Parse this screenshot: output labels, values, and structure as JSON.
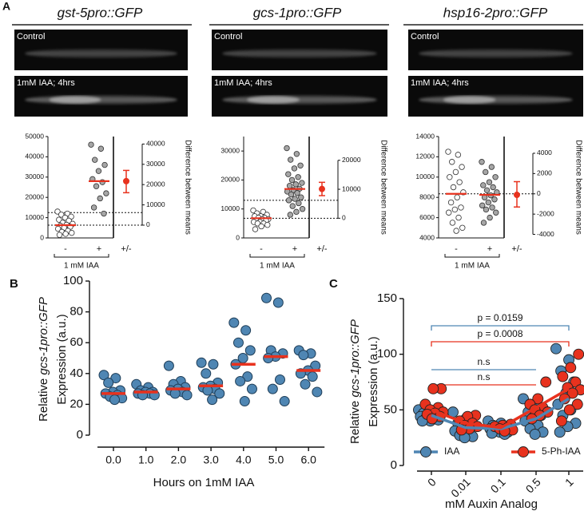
{
  "panel_labels": [
    "A",
    "B",
    "C"
  ],
  "chart_data": [
    {
      "type": "estimation",
      "title": "gst-5pro::GFP",
      "image_labels": [
        "Control",
        "1mM IAA; 4hrs"
      ],
      "categories": [
        "-",
        "+",
        "+/-"
      ],
      "group_label": "1 mM IAA",
      "values": [
        [
          13000,
          12000,
          11500,
          10500,
          10000,
          9000,
          8500,
          7500,
          7000,
          6500,
          6000,
          5500,
          5000,
          4500,
          3500,
          3000,
          2500,
          2000,
          1500
        ],
        [
          46000,
          44000,
          38500,
          36000,
          33000,
          29000,
          27500,
          25500,
          22000,
          19500,
          15000,
          12000
        ]
      ],
      "means": [
        6300,
        28000
      ],
      "difference": 21700,
      "ci": [
        16000,
        27000
      ],
      "marker_colors": [
        "#ffffff",
        "#a6a6a6"
      ],
      "mean_color": "#e8321e",
      "ylim": [
        0,
        50000
      ],
      "yticks": [
        0,
        10000,
        20000,
        30000,
        40000,
        50000
      ],
      "y2lim": [
        -6300,
        43700
      ],
      "y2ticks": [
        0,
        10000,
        20000,
        30000,
        40000
      ],
      "y2label": "Difference between means",
      "reference_lines": [
        6300,
        12500
      ]
    },
    {
      "type": "estimation",
      "title": "gcs-1pro::GFP",
      "image_labels": [
        "Control",
        "1mM IAA; 4hrs"
      ],
      "categories": [
        "-",
        "+",
        "+/-"
      ],
      "group_label": "1 mM IAA",
      "values": [
        [
          9500,
          9000,
          8500,
          8000,
          7500,
          7500,
          7000,
          7000,
          6500,
          6500,
          6000,
          6000,
          5500,
          5500,
          5000,
          5000,
          4500,
          4000,
          3000
        ],
        [
          31000,
          29000,
          27000,
          25000,
          24000,
          22000,
          21000,
          20000,
          19000,
          18500,
          18000,
          17000,
          16500,
          16000,
          15500,
          15000,
          14000,
          13500,
          13000,
          12000,
          11000,
          10000,
          9000,
          8000
        ]
      ],
      "means": [
        6800,
        16900
      ],
      "difference": 10100,
      "ci": [
        7800,
        12400
      ],
      "marker_colors": [
        "#ffffff",
        "#a6a6a6"
      ],
      "mean_color": "#e8321e",
      "ylim": [
        0,
        35000
      ],
      "yticks": [
        0,
        10000,
        20000,
        30000
      ],
      "y2lim": [
        -6800,
        28200
      ],
      "y2ticks": [
        0,
        10000,
        20000
      ],
      "y2label": "Difference between means",
      "reference_lines": [
        6800,
        13000
      ]
    },
    {
      "type": "estimation",
      "title": "hsp16-2pro::GFP",
      "image_labels": [
        "Control",
        "1mM IAA; 4hrs"
      ],
      "categories": [
        "-",
        "+",
        "+/-"
      ],
      "group_label": "1 mM IAA",
      "values": [
        [
          12500,
          12200,
          11500,
          11000,
          10500,
          10000,
          9500,
          9000,
          8500,
          8000,
          7500,
          7000,
          6800,
          6500,
          6000,
          5500,
          5000,
          4700
        ],
        [
          11500,
          11000,
          10500,
          10000,
          9500,
          9200,
          9000,
          8700,
          8500,
          8200,
          8000,
          7800,
          7500,
          7200,
          7000,
          6800,
          6500,
          6000,
          5500
        ]
      ],
      "means": [
        8350,
        8250
      ],
      "difference": -100,
      "ci": [
        -1300,
        1200
      ],
      "marker_colors": [
        "#ffffff",
        "#a6a6a6"
      ],
      "mean_color": "#e8321e",
      "ylim": [
        4000,
        14000
      ],
      "yticks": [
        4000,
        6000,
        8000,
        10000,
        12000,
        14000
      ],
      "y2lim": [
        -4350,
        5650
      ],
      "y2ticks": [
        -4000,
        -2000,
        0,
        2000,
        4000
      ],
      "y2label": "Difference between means",
      "reference_lines": [
        8350
      ]
    },
    {
      "type": "strip",
      "ylabel": [
        "Relative",
        "gcs-1pro::GFP",
        "Expression (a.u.)"
      ],
      "xlabel": "Hours on 1mM IAA",
      "categories": [
        "0.0",
        "1.0",
        "2.0",
        "3.0",
        "4.0",
        "5.0",
        "6.0"
      ],
      "values": [
        [
          39,
          37,
          34,
          29,
          28,
          27,
          26,
          25,
          24,
          23
        ],
        [
          33,
          31,
          29,
          28,
          28,
          27,
          27,
          26,
          26
        ],
        [
          45,
          35,
          33,
          31,
          30,
          29,
          28,
          27,
          26
        ],
        [
          47,
          46,
          40,
          34,
          32,
          31,
          30,
          29,
          27,
          23
        ],
        [
          73,
          68,
          60,
          55,
          50,
          46,
          38,
          35,
          30,
          22
        ],
        [
          89,
          86,
          55,
          53,
          51,
          50,
          36,
          30,
          22
        ],
        [
          55,
          53,
          52,
          45,
          42,
          40,
          38,
          33,
          28
        ]
      ],
      "medians": [
        27,
        28,
        30,
        32,
        46,
        51,
        42
      ],
      "color": "#4f86b3",
      "median_color": "#e8321e",
      "ylim": [
        0,
        100
      ],
      "yticks": [
        0,
        20,
        40,
        60,
        80,
        100
      ]
    },
    {
      "type": "dot_line",
      "ylabel": [
        "Relative",
        "gcs-1pro::GFP",
        "Expression (a.u.)"
      ],
      "xlabel": "mM Auxin Analog",
      "categories": [
        "0",
        "0.01",
        "0.1",
        "0.5",
        "1"
      ],
      "series": [
        {
          "name": "IAA",
          "color": "#4f86b3",
          "values": [
            [
              50,
              48,
              47,
              46,
              45,
              44,
              43,
              42,
              41,
              40,
              40
            ],
            [
              48,
              42,
              38,
              35,
              33,
              31,
              29,
              27,
              26,
              25
            ],
            [
              40,
              38,
              36,
              35,
              34,
              33,
              32,
              31,
              30,
              30,
              29,
              28
            ],
            [
              60,
              52,
              48,
              45,
              43,
              40,
              36,
              33,
              30,
              28
            ],
            [
              105,
              95,
              85,
              75,
              65,
              55,
              50,
              45,
              38,
              35,
              30
            ]
          ],
          "means": [
            45,
            34,
            33,
            42,
            60
          ]
        },
        {
          "name": "5-Ph-IAA",
          "color": "#e8321e",
          "values": [
            [
              69,
              69,
              55,
              52,
              50,
              48,
              47,
              46,
              44,
              42
            ],
            [
              45,
              44,
              40,
              38,
              36,
              35,
              33,
              32
            ],
            [
              37,
              36,
              35,
              34,
              33,
              32,
              31
            ],
            [
              75,
              60,
              55,
              52,
              50,
              48,
              45,
              42
            ],
            [
              100,
              88,
              80,
              75,
              70,
              68,
              65,
              60,
              55,
              50,
              40
            ]
          ],
          "means": [
            50,
            38,
            34,
            52,
            69
          ]
        }
      ],
      "annotations": [
        {
          "text": "p = 0.0159",
          "color": "#4f86b3"
        },
        {
          "text": "p = 0.0008",
          "color": "#e8321e"
        },
        {
          "text": "n.s",
          "color": "#4f86b3"
        },
        {
          "text": "n.s",
          "color": "#e8321e"
        }
      ],
      "ylim": [
        0,
        150
      ],
      "yticks": [
        0,
        50,
        100,
        150
      ],
      "legend": "bottom"
    }
  ]
}
